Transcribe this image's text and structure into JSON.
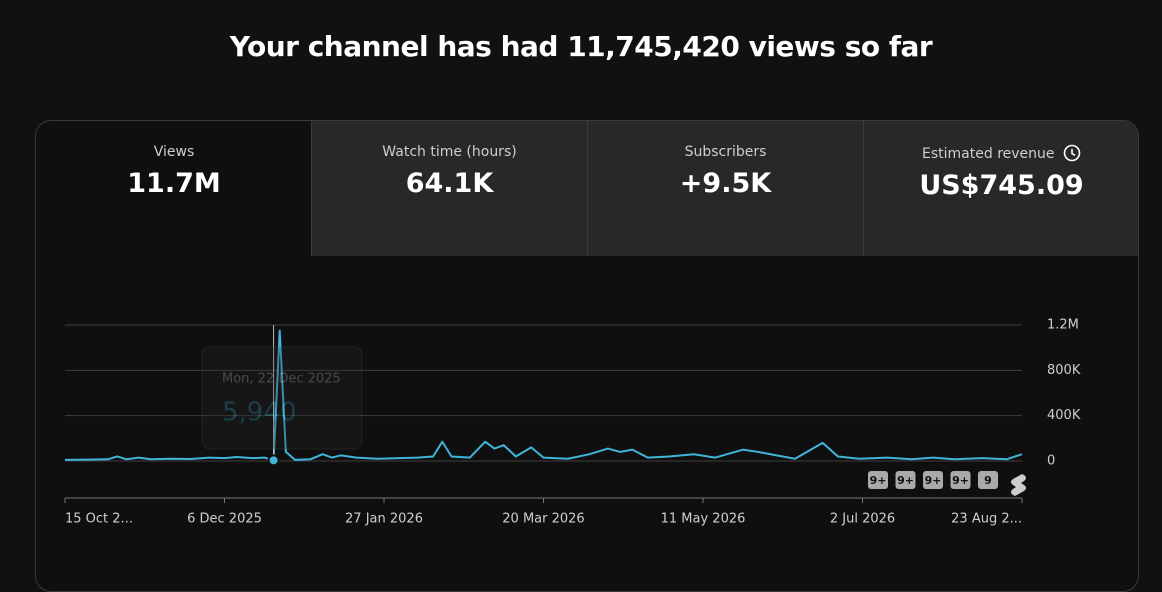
{
  "header": {
    "title": "Your channel has had 11,745,420 views so far"
  },
  "tabs": [
    {
      "label": "Views",
      "value": "11.7M"
    },
    {
      "label": "Watch time (hours)",
      "value": "64.1K"
    },
    {
      "label": "Subscribers",
      "value": "+9.5K"
    },
    {
      "label": "Estimated revenue",
      "value": "US$745.09"
    }
  ],
  "chart_data": {
    "type": "line",
    "color": "#41b4d9",
    "grid": true,
    "x": [
      "2025-10-15",
      "2025-10-22",
      "2025-10-29",
      "2025-11-01",
      "2025-11-04",
      "2025-11-08",
      "2025-11-12",
      "2025-11-18",
      "2025-11-25",
      "2025-12-01",
      "2025-12-06",
      "2025-12-10",
      "2025-12-15",
      "2025-12-19",
      "2025-12-22",
      "2025-12-24",
      "2025-12-26",
      "2025-12-29",
      "2026-01-03",
      "2026-01-07",
      "2026-01-10",
      "2026-01-13",
      "2026-01-18",
      "2026-01-25",
      "2026-02-01",
      "2026-02-07",
      "2026-02-12",
      "2026-02-15",
      "2026-02-18",
      "2026-02-24",
      "2026-03-01",
      "2026-03-04",
      "2026-03-07",
      "2026-03-11",
      "2026-03-16",
      "2026-03-20",
      "2026-03-28",
      "2026-04-04",
      "2026-04-10",
      "2026-04-14",
      "2026-04-18",
      "2026-04-23",
      "2026-04-30",
      "2026-05-08",
      "2026-05-15",
      "2026-05-24",
      "2026-05-29",
      "2026-06-04",
      "2026-06-10",
      "2026-06-19",
      "2026-06-24",
      "2026-07-01",
      "2026-07-10",
      "2026-07-18",
      "2026-07-25",
      "2026-08-01",
      "2026-08-10",
      "2026-08-18",
      "2026-08-23"
    ],
    "values": [
      10000,
      12000,
      15000,
      40000,
      15000,
      30000,
      15000,
      20000,
      18000,
      30000,
      25000,
      35000,
      25000,
      30000,
      5940,
      1150000,
      80000,
      10000,
      15000,
      60000,
      30000,
      50000,
      30000,
      20000,
      25000,
      30000,
      40000,
      170000,
      40000,
      30000,
      170000,
      110000,
      140000,
      40000,
      120000,
      30000,
      20000,
      60000,
      110000,
      80000,
      100000,
      30000,
      40000,
      60000,
      30000,
      100000,
      80000,
      50000,
      20000,
      160000,
      40000,
      20000,
      30000,
      15000,
      30000,
      15000,
      25000,
      15000,
      60000
    ],
    "xlim": [
      "2025-10-15",
      "2026-08-23"
    ],
    "xticks": [
      {
        "value": "2025-10-15",
        "label": "15 Oct 2..."
      },
      {
        "value": "2025-12-06",
        "label": "6 Dec 2025"
      },
      {
        "value": "2026-01-27",
        "label": "27 Jan 2026"
      },
      {
        "value": "2026-03-20",
        "label": "20 Mar 2026"
      },
      {
        "value": "2026-05-11",
        "label": "11 May 2026"
      },
      {
        "value": "2026-07-02",
        "label": "2 Jul 2026"
      },
      {
        "value": "2026-08-23",
        "label": "23 Aug 2..."
      }
    ],
    "ylim": [
      0,
      1200000
    ],
    "yticks": [
      0,
      {
        "value": 400000,
        "label": "400K"
      },
      {
        "value": 800000,
        "label": "800K"
      },
      {
        "value": 1200000,
        "label": "1.2M"
      }
    ],
    "tooltip": {
      "date": "Mon, 22 Dec 2025",
      "value": "5,940"
    },
    "badges": [
      "9+",
      "9+",
      "9+",
      "9+",
      "9"
    ]
  }
}
